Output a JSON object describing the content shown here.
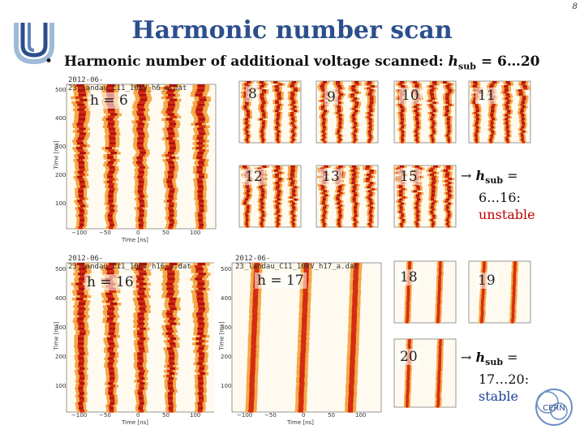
{
  "page_number": "8",
  "title": "Harmonic number scan",
  "bullet": {
    "lead": "Harmonic number of additional voltage scanned: ",
    "var": "h",
    "sub": "sub",
    "range": " = 6…20"
  },
  "big_plots": [
    {
      "id": "h6",
      "label": "h = 6",
      "file": "2012-06-23_landau_C11_10kV_h6_a.dat",
      "xlabel": "Time [ns]",
      "ylabel": "Time [ms]",
      "xticks": [
        "−100",
        "−50",
        "0",
        "50",
        "100"
      ],
      "yticks": [
        "500",
        "400",
        "300",
        "200",
        "100"
      ]
    },
    {
      "id": "h16",
      "label": "h = 16",
      "file": "2012-06-23_landau_C11_10kV_h16_a.dat",
      "xlabel": "Time [ns]",
      "ylabel": "Time [ms]",
      "xticks": [
        "−100",
        "−50",
        "0",
        "50",
        "100"
      ],
      "yticks": [
        "500",
        "400",
        "300",
        "200",
        "100"
      ]
    },
    {
      "id": "h17",
      "label": "h = 17",
      "file": "2012-06-23_landau_C11_10kV_h17_a.dat",
      "xlabel": "Time [ns]",
      "ylabel": "Time [ms]",
      "xticks": [
        "−100",
        "−50",
        "0",
        "50",
        "100"
      ],
      "yticks": [
        "500",
        "400",
        "300",
        "200",
        "100"
      ]
    }
  ],
  "small_plots": [
    {
      "id": "h8",
      "label": "8"
    },
    {
      "id": "h9",
      "label": "9"
    },
    {
      "id": "h10",
      "label": "10"
    },
    {
      "id": "h11",
      "label": "11"
    },
    {
      "id": "h12",
      "label": "12"
    },
    {
      "id": "h13",
      "label": "13"
    },
    {
      "id": "h15",
      "label": "15"
    },
    {
      "id": "h18",
      "label": "18"
    },
    {
      "id": "h19",
      "label": "19"
    },
    {
      "id": "h20",
      "label": "20"
    }
  ],
  "note_unstable": {
    "arrow": "→",
    "var": "h",
    "sub": "sub",
    "eq": " =",
    "range": "6…16:",
    "status": "unstable"
  },
  "note_stable": {
    "arrow": "→",
    "var": "h",
    "sub": "sub",
    "eq": " =",
    "range": "17…20:",
    "status": "stable"
  },
  "logos": {
    "left": "university-logo",
    "right": "cern-logo",
    "right_text": "CERN"
  },
  "colors": {
    "title": "#2c4f8c",
    "unstable": "#c00000",
    "stable": "#1f3f9a"
  }
}
